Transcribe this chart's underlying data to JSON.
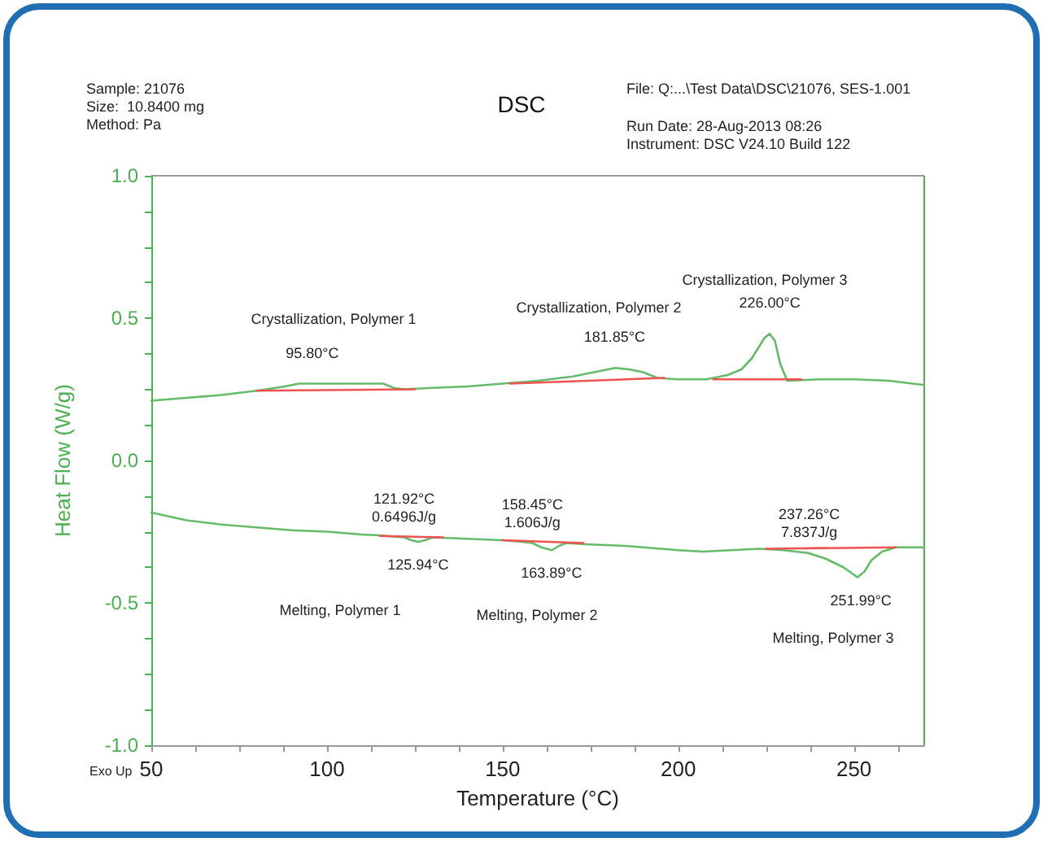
{
  "chart_data": {
    "type": "line",
    "title": "DSC",
    "xlabel": "Temperature (°C)",
    "ylabel": "Heat Flow (W/g)",
    "x": [
      50,
      60,
      70,
      80,
      88,
      92,
      95.8,
      105,
      112,
      116,
      119,
      122,
      130,
      140,
      150,
      160,
      170,
      176,
      182,
      186,
      190,
      194,
      200,
      208,
      214,
      218,
      221,
      223,
      224.5,
      226,
      227.5,
      229,
      231,
      240,
      250,
      260,
      270
    ],
    "series": [
      {
        "color": "#66bb6a",
        "values": [
          0.21,
          0.22,
          0.23,
          0.245,
          0.26,
          0.27,
          0.27,
          0.27,
          0.27,
          0.27,
          0.255,
          0.25,
          0.255,
          0.26,
          0.27,
          0.28,
          0.295,
          0.31,
          0.325,
          0.32,
          0.31,
          0.29,
          0.285,
          0.285,
          0.3,
          0.32,
          0.36,
          0.4,
          0.43,
          0.445,
          0.42,
          0.34,
          0.28,
          0.285,
          0.285,
          0.28,
          0.265
        ]
      },
      {
        "color": "#66bb6a",
        "x": [
          50,
          60,
          70,
          80,
          90,
          100,
          110,
          115,
          122,
          124,
          126,
          128,
          130,
          140,
          150,
          155,
          158.5,
          161,
          164,
          166,
          168,
          175,
          185,
          195,
          200,
          207,
          215,
          223,
          230,
          237,
          242,
          247,
          251,
          253,
          255,
          258,
          262,
          270
        ],
        "values": [
          -0.183,
          -0.21,
          -0.225,
          -0.235,
          -0.245,
          -0.25,
          -0.26,
          -0.263,
          -0.27,
          -0.28,
          -0.286,
          -0.28,
          -0.27,
          -0.275,
          -0.28,
          -0.285,
          -0.29,
          -0.305,
          -0.315,
          -0.3,
          -0.29,
          -0.295,
          -0.3,
          -0.31,
          -0.315,
          -0.32,
          -0.315,
          -0.31,
          -0.315,
          -0.325,
          -0.345,
          -0.375,
          -0.41,
          -0.39,
          -0.35,
          -0.32,
          -0.305,
          -0.305
        ]
      },
      {
        "color": "#ef5350",
        "x": [
          80,
          125
        ],
        "values": [
          0.245,
          0.25
        ]
      },
      {
        "color": "#ef5350",
        "x": [
          152,
          196
        ],
        "values": [
          0.27,
          0.29
        ]
      },
      {
        "color": "#ef5350",
        "x": [
          210,
          235
        ],
        "values": [
          0.285,
          0.285
        ]
      },
      {
        "color": "#ef5350",
        "x": [
          115,
          133
        ],
        "values": [
          -0.265,
          -0.27
        ]
      },
      {
        "color": "#ef5350",
        "x": [
          150,
          173
        ],
        "values": [
          -0.28,
          -0.29
        ]
      },
      {
        "color": "#ef5350",
        "x": [
          225,
          262
        ],
        "values": [
          -0.31,
          -0.305
        ]
      }
    ],
    "xlim": [
      50,
      270
    ],
    "xticks": [
      50,
      {
        "value": 62.5,
        "label": null
      },
      {
        "value": 75,
        "label": null
      },
      {
        "value": 87.5,
        "label": null
      },
      100,
      {
        "value": 112.5,
        "label": null
      },
      {
        "value": 125,
        "label": null
      },
      {
        "value": 137.5,
        "label": null
      },
      150,
      {
        "value": 162.5,
        "label": null
      },
      {
        "value": 175,
        "label": null
      },
      {
        "value": 187.5,
        "label": null
      },
      200,
      {
        "value": 212.5,
        "label": null
      },
      {
        "value": 225,
        "label": null
      },
      {
        "value": 237.5,
        "label": null
      },
      250,
      {
        "value": 262.5,
        "label": null
      }
    ],
    "ylim": [
      -1,
      1
    ],
    "yticks": [
      {
        "value": -1,
        "label": "-1.0"
      },
      {
        "value": -0.875,
        "label": null
      },
      {
        "value": -0.75,
        "label": null
      },
      {
        "value": -0.625,
        "label": null
      },
      {
        "value": -0.5,
        "label": "-0.5"
      },
      {
        "value": -0.375,
        "label": null
      },
      {
        "value": -0.25,
        "label": null
      },
      {
        "value": -0.125,
        "label": null
      },
      {
        "value": 0,
        "label": "0.0"
      },
      {
        "value": 0.125,
        "label": null
      },
      {
        "value": 0.25,
        "label": null
      },
      {
        "value": 0.375,
        "label": null
      },
      {
        "value": 0.5,
        "label": "0.5"
      },
      {
        "value": 0.625,
        "label": null
      },
      {
        "value": 0.75,
        "label": null
      },
      {
        "value": 0.875,
        "label": null
      },
      {
        "value": 1,
        "label": "1.0"
      }
    ],
    "grid": false,
    "marker": "none",
    "line_style": "solid",
    "annotations": [
      "Sample: 21076",
      "Size:  10.8400 mg",
      "Method: Pa",
      "File: Q:...\\Test Data\\DSC\\21076, SES-1.001",
      "Run Date: 28-Aug-2013 08:26",
      "Instrument: DSC V24.10 Build 122",
      "Exo Up",
      "Crystallization, Polymer 1",
      "Crystallization, Polymer 2",
      "Crystallization, Polymer 3",
      "Melting, Polymer 1",
      "Melting, Polymer 2",
      "Melting, Polymer 3",
      {
        "text": "95.80°C",
        "x": 95.8,
        "y": 0.27
      },
      {
        "text": "181.85°C",
        "x": 181.85,
        "y": 0.325
      },
      {
        "text": "226.00°C",
        "x": 226,
        "y": 0.445
      },
      {
        "text": "121.92°C",
        "x": 121.92,
        "y": -0.27
      },
      {
        "text": "0.6496J/g",
        "x": 121.92,
        "y": -0.27
      },
      {
        "text": "125.94°C",
        "x": 125.94,
        "y": -0.286
      },
      {
        "text": "158.45°C",
        "x": 158.45,
        "y": -0.29
      },
      {
        "text": "1.606J/g",
        "x": 158.45,
        "y": -0.29
      },
      {
        "text": "163.89°C",
        "x": 163.89,
        "y": -0.315
      },
      {
        "text": "237.26°C",
        "x": 237.26,
        "y": -0.325
      },
      {
        "text": "7.837J/g",
        "x": 237.26,
        "y": -0.325
      },
      {
        "text": "251.99°C",
        "x": 251.99,
        "y": -0.41
      }
    ]
  }
}
